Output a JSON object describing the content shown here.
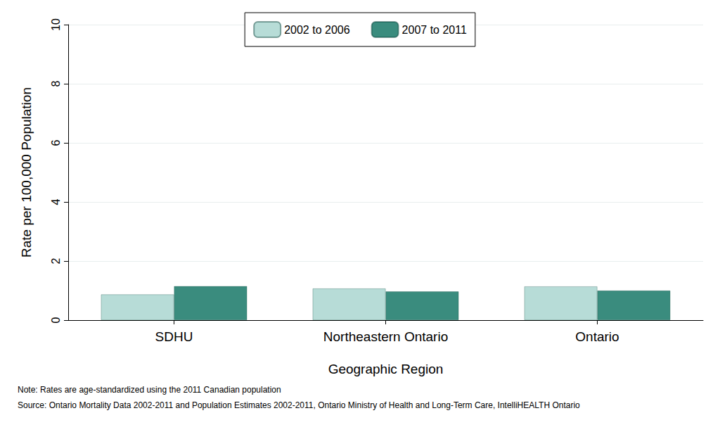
{
  "chart_data": {
    "type": "bar",
    "x_label": "Geographic Region",
    "y_label": "Rate per 100,000 Population",
    "categories": [
      "SDHU",
      "Northeastern Ontario",
      "Ontario"
    ],
    "series": [
      {
        "name": "2002 to 2006",
        "color": "#b7dcd7",
        "values": [
          0.87,
          1.07,
          1.14
        ]
      },
      {
        "name": "2007 to 2011",
        "color": "#3a8c7e",
        "values": [
          1.15,
          0.97,
          1.0
        ]
      }
    ],
    "ylim": [
      0,
      10
    ],
    "yticks": [
      0,
      2,
      4,
      6,
      8,
      10
    ],
    "grid": true,
    "legend": "top",
    "annotations": [
      "Note: Rates are age-standardized using the 2011 Canadian population",
      "Source: Ontario Mortality Data 2002-2011 and Population Estimates 2002-2011, Ontario Ministry of Health and Long-Term Care, IntelliHEALTH Ontario"
    ]
  }
}
